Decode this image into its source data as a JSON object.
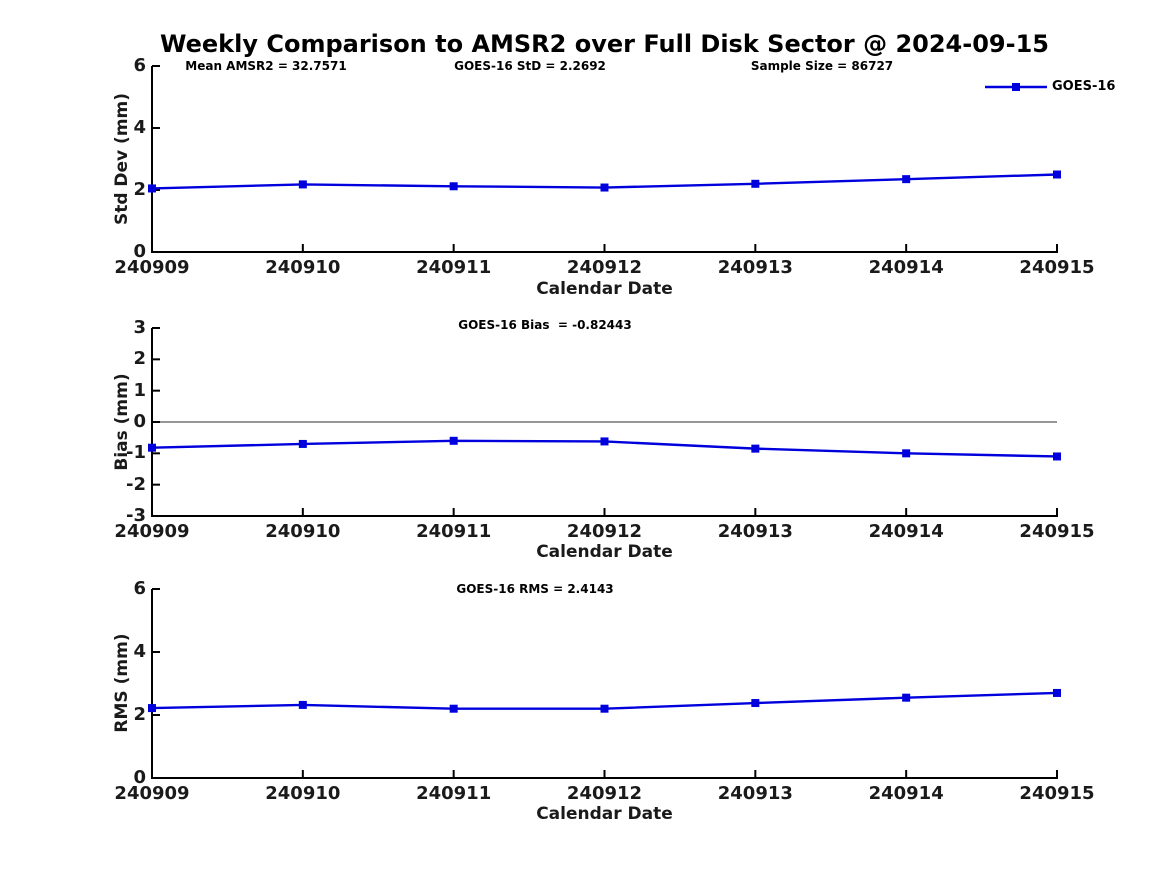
{
  "title": "Weekly Comparison to AMSR2 over Full Disk Sector @ 2024-09-15",
  "legend": {
    "label": "GOES-16",
    "color": "#0000dd",
    "position": "top-right"
  },
  "colors": {
    "line": "#0000dd",
    "marker": "#0000dd",
    "zero_line": "#888888",
    "axis": "#000000"
  },
  "chart_data": [
    {
      "type": "line",
      "categories": [
        "240909",
        "240910",
        "240911",
        "240912",
        "240913",
        "240914",
        "240915"
      ],
      "series": [
        {
          "name": "GOES-16",
          "values": [
            2.05,
            2.18,
            2.12,
            2.08,
            2.2,
            2.35,
            2.5
          ]
        }
      ],
      "xlabel": "Calendar Date",
      "ylabel": "Std Dev (mm)",
      "ylim": [
        0,
        6
      ],
      "yticks": [
        0,
        2,
        4,
        6
      ],
      "grid": false,
      "legend_position": "top-right",
      "annotations": [
        "Mean AMSR2 = 32.7571",
        "GOES-16 StD = 2.2692",
        "Sample Size = 86727"
      ]
    },
    {
      "type": "line",
      "categories": [
        "240909",
        "240910",
        "240911",
        "240912",
        "240913",
        "240914",
        "240915"
      ],
      "series": [
        {
          "name": "GOES-16",
          "values": [
            -0.82,
            -0.7,
            -0.6,
            -0.62,
            -0.85,
            -1.0,
            -1.1
          ]
        }
      ],
      "xlabel": "Calendar Date",
      "ylabel": "Bias (mm)",
      "ylim": [
        -3,
        3
      ],
      "yticks": [
        -3,
        -2,
        -1,
        0,
        1,
        2,
        3
      ],
      "grid": false,
      "zero_line": true,
      "annotations": [
        "GOES-16 Bias  = -0.82443"
      ]
    },
    {
      "type": "line",
      "categories": [
        "240909",
        "240910",
        "240911",
        "240912",
        "240913",
        "240914",
        "240915"
      ],
      "series": [
        {
          "name": "GOES-16",
          "values": [
            2.22,
            2.32,
            2.2,
            2.2,
            2.38,
            2.55,
            2.7
          ]
        }
      ],
      "xlabel": "Calendar Date",
      "ylabel": "RMS (mm)",
      "ylim": [
        0,
        6
      ],
      "yticks": [
        0,
        2,
        4,
        6
      ],
      "grid": false,
      "annotations": [
        "GOES-16 RMS = 2.4143"
      ]
    }
  ]
}
